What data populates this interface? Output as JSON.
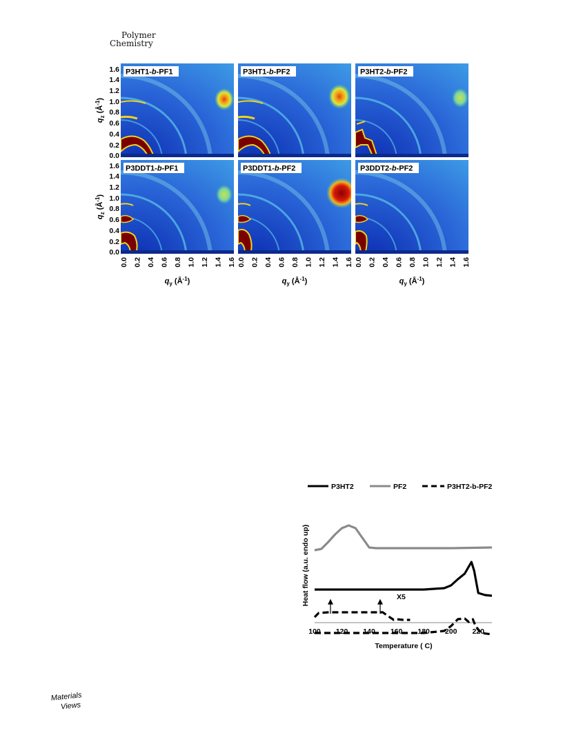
{
  "header": {
    "journal_line1": "Polymer",
    "journal_line2": "Chemistry"
  },
  "publisher_logo": {
    "line1": "Materials",
    "line2": "Views"
  },
  "figure_giwaxs": {
    "panels": [
      {
        "label_prefix": "P3HT1-",
        "label_italic": "b",
        "label_suffix": "-PF1"
      },
      {
        "label_prefix": "P3HT1-",
        "label_italic": "b",
        "label_suffix": "-PF2"
      },
      {
        "label_prefix": "P3HT2-",
        "label_italic": "b",
        "label_suffix": "-PF2"
      },
      {
        "label_prefix": "P3DDT1-",
        "label_italic": "b",
        "label_suffix": "-PF1"
      },
      {
        "label_prefix": "P3DDT1-",
        "label_italic": "b",
        "label_suffix": "-PF2"
      },
      {
        "label_prefix": "P3DDT2-",
        "label_italic": "b",
        "label_suffix": "-PF2"
      }
    ],
    "ytick_labels": [
      "1.6",
      "1.4",
      "1.2",
      "1.0",
      "0.8",
      "0.6",
      "0.4",
      "0.2",
      "0.0"
    ],
    "xtick_labels": [
      "0.0",
      "0.2",
      "0.4",
      "0.6",
      "0.8",
      "1.0",
      "1.2",
      "1.4",
      "1.6"
    ],
    "ylabel_sym": "q",
    "ylabel_sub": "z",
    "ylabel_unit": "(Å",
    "ylabel_exp": "-1",
    "ylabel_close": ")",
    "xlabel_sym": "q",
    "xlabel_sub": "y",
    "xlabel_unit": "(Å",
    "xlabel_exp": "-1",
    "xlabel_close": ")"
  },
  "chart_data": {
    "type": "line",
    "xlabel": "Temperature ( C)",
    "ylabel": "Heat flow (a.u. endo up)",
    "xlim": [
      100,
      230
    ],
    "xticks": [
      "100",
      "120",
      "140",
      "160",
      "180",
      "200",
      "220"
    ],
    "annotation": "X5",
    "legend_position": "top",
    "series": [
      {
        "name": "P3HT2",
        "style": "solid",
        "color": "#000000",
        "x": [
          100,
          120,
          140,
          160,
          180,
          195,
          200,
          205,
          210,
          215,
          217,
          220,
          225,
          230
        ],
        "y": [
          0.35,
          0.35,
          0.35,
          0.35,
          0.35,
          0.37,
          0.41,
          0.5,
          0.58,
          0.75,
          0.62,
          0.3,
          0.27,
          0.26
        ]
      },
      {
        "name": "PF2",
        "style": "solid",
        "color": "#8a8a8a",
        "x": [
          100,
          105,
          110,
          115,
          120,
          125,
          130,
          135,
          140,
          145,
          160,
          180,
          200,
          230
        ],
        "y": [
          0.92,
          0.94,
          1.04,
          1.15,
          1.24,
          1.28,
          1.24,
          1.1,
          0.96,
          0.95,
          0.95,
          0.95,
          0.95,
          0.96
        ]
      },
      {
        "name": "P3HT2-b-PF2",
        "style": "dashed",
        "color": "#000000",
        "x": [
          100,
          120,
          140,
          160,
          180,
          195,
          200,
          205,
          210,
          213,
          216,
          218,
          222,
          230
        ],
        "y": [
          -0.28,
          -0.28,
          -0.28,
          -0.28,
          -0.28,
          -0.25,
          -0.18,
          -0.08,
          -0.07,
          -0.12,
          -0.08,
          -0.18,
          -0.28,
          -0.3
        ]
      },
      {
        "name": "",
        "style": "dashed",
        "color": "#000000",
        "x": [
          100,
          103,
          110,
          120,
          130,
          140,
          150,
          155,
          158,
          160,
          165,
          170
        ],
        "y": [
          -0.05,
          0.01,
          0.02,
          0.02,
          0.02,
          0.02,
          0.02,
          -0.05,
          -0.09,
          -0.08,
          -0.09,
          -0.09
        ]
      }
    ]
  }
}
